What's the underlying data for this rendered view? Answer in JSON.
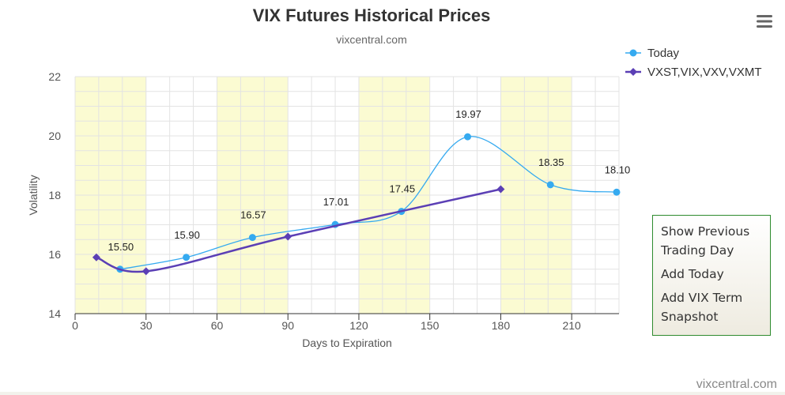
{
  "chart_data": {
    "type": "line",
    "title": "VIX Futures Historical Prices",
    "subtitle": "vixcentral.com",
    "xlabel": "Days to Expiration",
    "ylabel": "Volatility",
    "xlim": [
      0,
      230
    ],
    "ylim": [
      14,
      22
    ],
    "x_ticks": [
      0,
      30,
      60,
      90,
      120,
      150,
      180,
      210
    ],
    "y_ticks": [
      14,
      16,
      18,
      20,
      22
    ],
    "grid": true,
    "legend_position": "top-right",
    "series": [
      {
        "name": "Today",
        "color": "#35aaf0",
        "marker": "circle",
        "x": [
          19,
          47,
          75,
          110,
          138,
          166,
          201,
          229
        ],
        "y": [
          15.5,
          15.9,
          16.57,
          17.01,
          17.45,
          19.97,
          18.35,
          18.1
        ],
        "data_labels": [
          "15.50",
          "15.90",
          "16.57",
          "17.01",
          "17.45",
          "19.97",
          "18.35",
          "18.10"
        ]
      },
      {
        "name": "VXST,VIX,VXV,VXMT",
        "color": "#5b3fb5",
        "marker": "diamond",
        "x": [
          9,
          30,
          90,
          180
        ],
        "y": [
          15.9,
          15.43,
          16.6,
          18.2
        ]
      }
    ]
  },
  "credit": "vixcentral.com",
  "menu_icon": "hamburger-menu-icon",
  "context_menu": {
    "items": [
      "Show Previous",
      "Trading Day",
      "Add Today",
      "Add VIX Term",
      "Snapshot"
    ]
  },
  "colors": {
    "band": "#fbfbd2",
    "grid": "#e3e3e3",
    "axis": "#333333",
    "menu_border": "#2e8b2e"
  }
}
